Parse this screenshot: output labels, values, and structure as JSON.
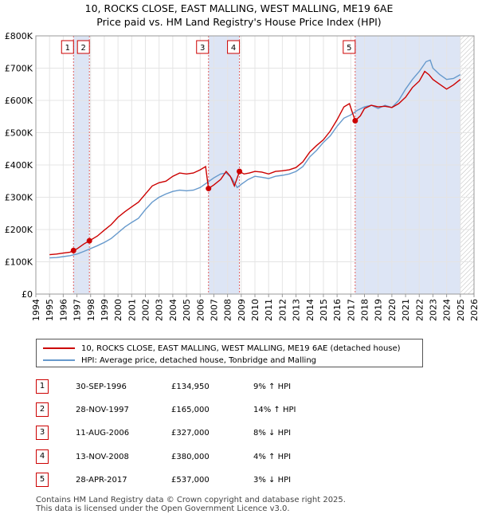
{
  "title_line1": "10, ROCKS CLOSE, EAST MALLING, WEST MALLING, ME19 6AE",
  "title_line2": "Price paid vs. HM Land Registry's House Price Index (HPI)",
  "colors": {
    "property": "#cc0000",
    "hpi": "#6699cc",
    "shade": "#dde5f5",
    "marker_line": "#e06060"
  },
  "chart_data": {
    "type": "line",
    "ylim": [
      0,
      800000
    ],
    "xlim": [
      1994,
      2026
    ],
    "ytick_values": [
      0,
      100000,
      200000,
      300000,
      400000,
      500000,
      600000,
      700000,
      800000
    ],
    "ytick_labels": [
      "£0",
      "£100K",
      "£200K",
      "£300K",
      "£400K",
      "£500K",
      "£600K",
      "£700K",
      "£800K"
    ],
    "xtick_labels": [
      "1994",
      "1995",
      "1996",
      "1997",
      "1998",
      "1999",
      "2000",
      "2001",
      "2002",
      "2003",
      "2004",
      "2005",
      "2006",
      "2007",
      "2008",
      "2009",
      "2010",
      "2011",
      "2012",
      "2013",
      "2014",
      "2015",
      "2016",
      "2017",
      "2018",
      "2019",
      "2020",
      "2021",
      "2022",
      "2023",
      "2024",
      "2025",
      "2026"
    ],
    "shaded_ranges": [
      [
        1996.75,
        1997.91
      ],
      [
        2006.61,
        2008.87
      ],
      [
        2017.32,
        2025.0
      ]
    ],
    "hatched_range": [
      2025.0,
      2026.0
    ],
    "series": [
      {
        "name": "10, ROCKS CLOSE, EAST MALLING, WEST MALLING, ME19 6AE (detached house)",
        "x": [
          1995,
          1995.5,
          1996,
          1996.5,
          1996.75,
          1997,
          1997.5,
          1997.91,
          1998.5,
          1999,
          1999.5,
          2000,
          2000.5,
          2001,
          2001.5,
          2002,
          2002.5,
          2003,
          2003.5,
          2004,
          2004.5,
          2005,
          2005.5,
          2006,
          2006.4,
          2006.61,
          2007,
          2007.5,
          2007.9,
          2008.2,
          2008.5,
          2008.87,
          2009.2,
          2009.6,
          2010,
          2010.5,
          2011,
          2011.5,
          2012,
          2012.5,
          2013,
          2013.5,
          2014,
          2014.5,
          2015,
          2015.5,
          2016,
          2016.5,
          2016.9,
          2017.32,
          2017.7,
          2018,
          2018.5,
          2019,
          2019.5,
          2020,
          2020.5,
          2021,
          2021.5,
          2022,
          2022.4,
          2022.7,
          2023,
          2023.5,
          2024,
          2024.5,
          2025
        ],
        "values": [
          122000,
          124000,
          127000,
          130000,
          134950,
          140000,
          155000,
          165000,
          180000,
          198000,
          215000,
          238000,
          255000,
          270000,
          285000,
          310000,
          335000,
          345000,
          350000,
          365000,
          375000,
          372000,
          375000,
          385000,
          395000,
          327000,
          338000,
          355000,
          380000,
          365000,
          335000,
          380000,
          372000,
          375000,
          380000,
          378000,
          372000,
          380000,
          382000,
          385000,
          392000,
          410000,
          440000,
          460000,
          478000,
          505000,
          540000,
          580000,
          590000,
          537000,
          552000,
          575000,
          585000,
          580000,
          582000,
          578000,
          590000,
          610000,
          640000,
          660000,
          690000,
          680000,
          665000,
          650000,
          635000,
          648000,
          665000
        ]
      },
      {
        "name": "HPI: Average price, detached house, Tonbridge and Malling",
        "x": [
          1995,
          1995.5,
          1996,
          1996.5,
          1997,
          1997.5,
          1998,
          1998.5,
          1999,
          1999.5,
          2000,
          2000.5,
          2001,
          2001.5,
          2002,
          2002.5,
          2003,
          2003.5,
          2004,
          2004.5,
          2005,
          2005.5,
          2006,
          2006.5,
          2007,
          2007.5,
          2007.9,
          2008.3,
          2008.7,
          2009,
          2009.5,
          2010,
          2010.5,
          2011,
          2011.5,
          2012,
          2012.5,
          2013,
          2013.5,
          2014,
          2014.5,
          2015,
          2015.5,
          2016,
          2016.5,
          2017,
          2017.5,
          2018,
          2018.5,
          2019,
          2019.5,
          2020,
          2020.5,
          2021,
          2021.5,
          2022,
          2022.5,
          2022.8,
          2023,
          2023.5,
          2024,
          2024.5,
          2025
        ],
        "values": [
          112000,
          113000,
          116000,
          119000,
          124000,
          132000,
          141000,
          150000,
          160000,
          172000,
          190000,
          208000,
          222000,
          235000,
          262000,
          285000,
          300000,
          310000,
          318000,
          322000,
          320000,
          322000,
          330000,
          345000,
          360000,
          372000,
          375000,
          360000,
          330000,
          340000,
          355000,
          365000,
          362000,
          358000,
          365000,
          368000,
          372000,
          380000,
          395000,
          425000,
          445000,
          470000,
          490000,
          520000,
          545000,
          555000,
          570000,
          580000,
          585000,
          575000,
          585000,
          578000,
          600000,
          635000,
          665000,
          690000,
          720000,
          725000,
          700000,
          680000,
          665000,
          668000,
          680000
        ]
      }
    ],
    "sales": [
      {
        "num": "1",
        "x": 1996.75,
        "value": 134950
      },
      {
        "num": "2",
        "x": 1997.91,
        "value": 165000
      },
      {
        "num": "3",
        "x": 2006.61,
        "value": 327000
      },
      {
        "num": "4",
        "x": 2008.87,
        "value": 380000
      },
      {
        "num": "5",
        "x": 2017.32,
        "value": 537000
      }
    ]
  },
  "legend": {
    "property": "10, ROCKS CLOSE, EAST MALLING, WEST MALLING, ME19 6AE (detached house)",
    "hpi": "HPI: Average price, detached house, Tonbridge and Malling"
  },
  "sales_table": [
    {
      "num": "1",
      "date": "30-SEP-1996",
      "price": "£134,950",
      "hpi": "9% ↑ HPI"
    },
    {
      "num": "2",
      "date": "28-NOV-1997",
      "price": "£165,000",
      "hpi": "14% ↑ HPI"
    },
    {
      "num": "3",
      "date": "11-AUG-2006",
      "price": "£327,000",
      "hpi": "8% ↓ HPI"
    },
    {
      "num": "4",
      "date": "13-NOV-2008",
      "price": "£380,000",
      "hpi": "4% ↑ HPI"
    },
    {
      "num": "5",
      "date": "28-APR-2017",
      "price": "£537,000",
      "hpi": "3% ↓ HPI"
    }
  ],
  "footer_line1": "Contains HM Land Registry data © Crown copyright and database right 2025.",
  "footer_line2": "This data is licensed under the Open Government Licence v3.0."
}
